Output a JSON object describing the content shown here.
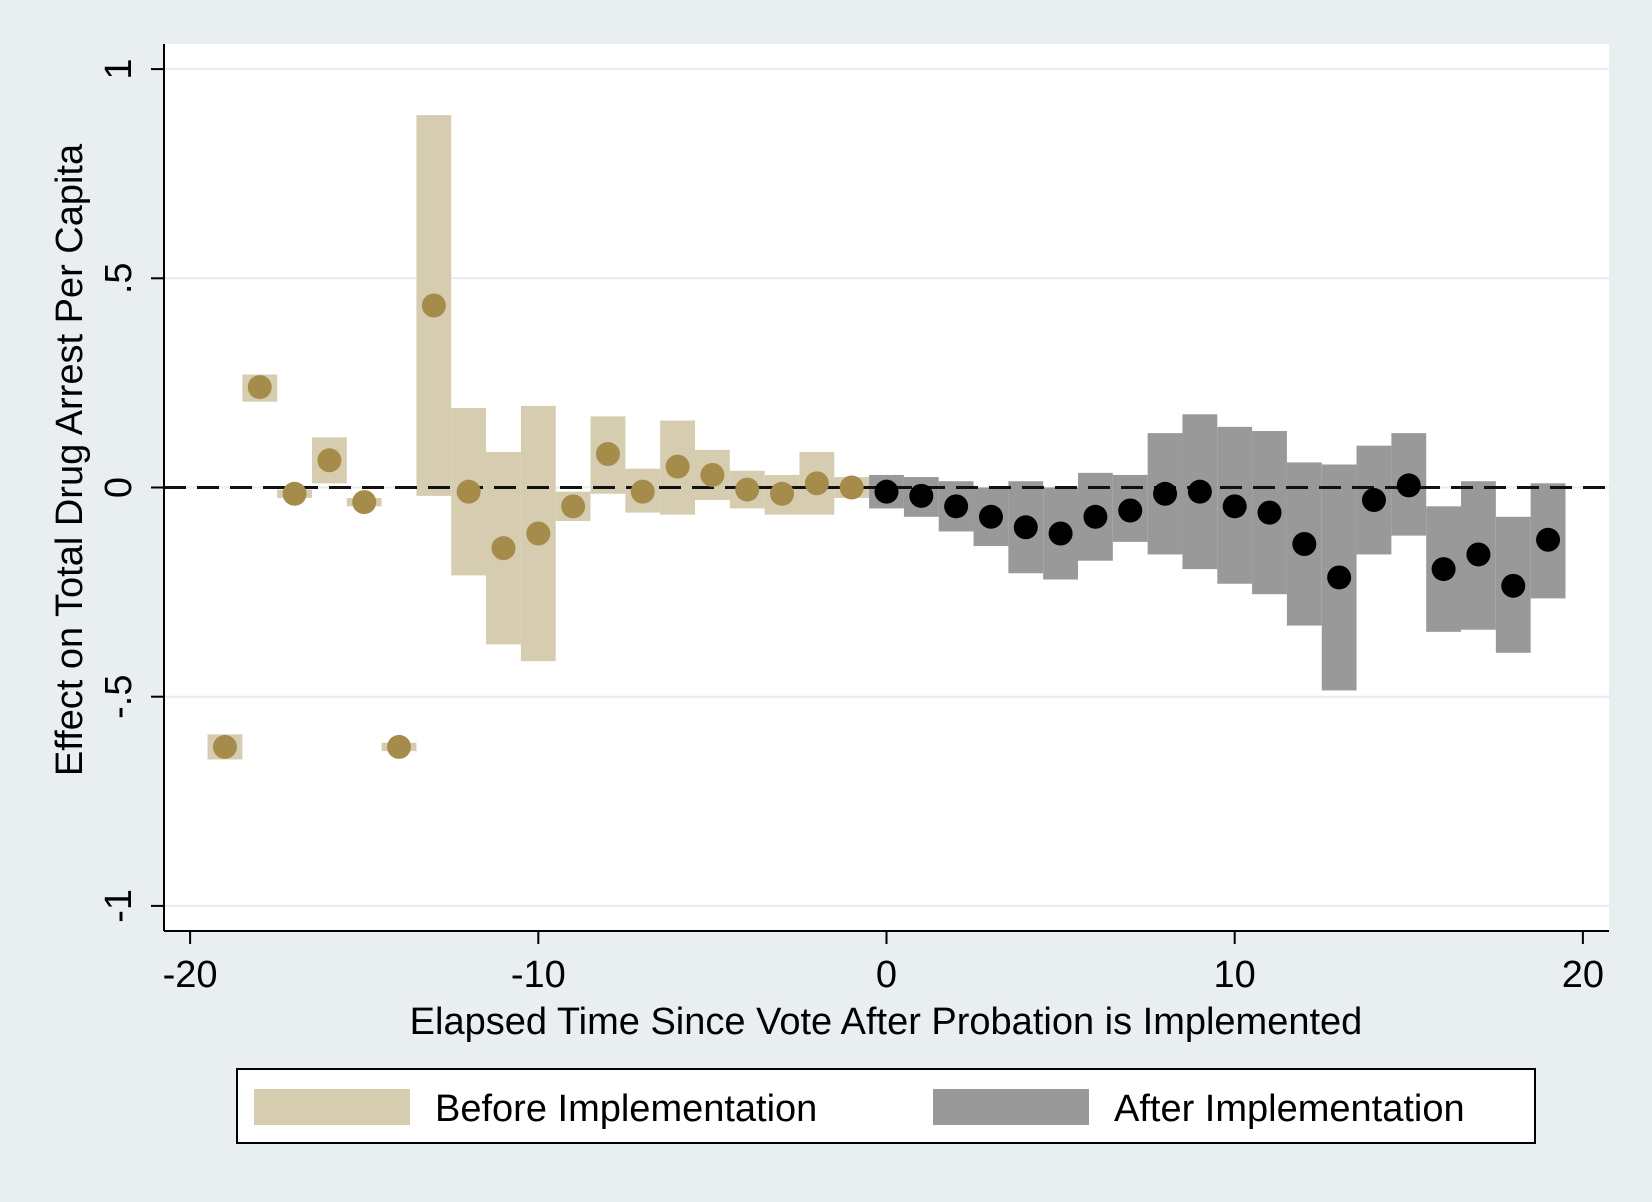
{
  "chart_data": {
    "type": "scatter",
    "xlabel": "Elapsed Time Since Vote After Probation is Implemented",
    "ylabel": "Effect on Total Drug Arrest Per Capita",
    "xlim": [
      -20.75,
      20.75
    ],
    "ylim": [
      -1.06,
      1.06
    ],
    "x_ticks": [
      -20,
      -10,
      0,
      10,
      20
    ],
    "x_tick_labels": [
      "-20",
      "-10",
      "0",
      "10",
      "20"
    ],
    "y_ticks": [
      -1,
      -0.5,
      0,
      0.5,
      1
    ],
    "y_tick_labels": [
      "-1",
      "-.5",
      "0",
      ".5",
      "1"
    ],
    "grid": true,
    "reference_line": {
      "y": 0,
      "style": "dashed"
    },
    "legend_position": "bottom",
    "colors": {
      "before_band": "#d6ccb0",
      "before_point": "#a58c4b",
      "after_band": "#999999",
      "after_point": "#000000",
      "background": "#e9eef1",
      "plot_background": "#ffffff",
      "grid": "#e6ecef"
    },
    "series": [
      {
        "name": "Before Implementation",
        "points": [
          {
            "x": -19,
            "y": -0.62,
            "lo": -0.65,
            "hi": -0.59
          },
          {
            "x": -18,
            "y": 0.24,
            "lo": 0.205,
            "hi": 0.27
          },
          {
            "x": -17,
            "y": -0.015,
            "lo": -0.025,
            "hi": -0.005
          },
          {
            "x": -16,
            "y": 0.065,
            "lo": 0.01,
            "hi": 0.12
          },
          {
            "x": -15,
            "y": -0.035,
            "lo": -0.045,
            "hi": -0.025
          },
          {
            "x": -14,
            "y": -0.62,
            "lo": -0.63,
            "hi": -0.61
          },
          {
            "x": -13,
            "y": 0.435,
            "lo": -0.02,
            "hi": 0.89
          },
          {
            "x": -12,
            "y": -0.01,
            "lo": -0.21,
            "hi": 0.19
          },
          {
            "x": -11,
            "y": -0.145,
            "lo": -0.375,
            "hi": 0.085
          },
          {
            "x": -10,
            "y": -0.11,
            "lo": -0.415,
            "hi": 0.195
          },
          {
            "x": -9,
            "y": -0.045,
            "lo": -0.08,
            "hi": -0.01
          },
          {
            "x": -8,
            "y": 0.08,
            "lo": -0.015,
            "hi": 0.17
          },
          {
            "x": -7,
            "y": -0.01,
            "lo": -0.06,
            "hi": 0.045
          },
          {
            "x": -6,
            "y": 0.05,
            "lo": -0.065,
            "hi": 0.16
          },
          {
            "x": -5,
            "y": 0.03,
            "lo": -0.03,
            "hi": 0.09
          },
          {
            "x": -4,
            "y": -0.005,
            "lo": -0.05,
            "hi": 0.04
          },
          {
            "x": -3,
            "y": -0.015,
            "lo": -0.065,
            "hi": 0.03
          },
          {
            "x": -2,
            "y": 0.01,
            "lo": -0.065,
            "hi": 0.085
          },
          {
            "x": -1,
            "y": 0.0,
            "lo": -0.025,
            "hi": 0.025
          }
        ]
      },
      {
        "name": "After Implementation",
        "points": [
          {
            "x": 0,
            "y": -0.01,
            "lo": -0.05,
            "hi": 0.03
          },
          {
            "x": 1,
            "y": -0.02,
            "lo": -0.07,
            "hi": 0.025
          },
          {
            "x": 2,
            "y": -0.045,
            "lo": -0.105,
            "hi": 0.015
          },
          {
            "x": 3,
            "y": -0.07,
            "lo": -0.14,
            "hi": 0.0
          },
          {
            "x": 4,
            "y": -0.095,
            "lo": -0.205,
            "hi": 0.015
          },
          {
            "x": 5,
            "y": -0.11,
            "lo": -0.22,
            "hi": 0.0
          },
          {
            "x": 6,
            "y": -0.07,
            "lo": -0.175,
            "hi": 0.035
          },
          {
            "x": 7,
            "y": -0.055,
            "lo": -0.13,
            "hi": 0.03
          },
          {
            "x": 8,
            "y": -0.015,
            "lo": -0.16,
            "hi": 0.13
          },
          {
            "x": 9,
            "y": -0.01,
            "lo": -0.195,
            "hi": 0.175
          },
          {
            "x": 10,
            "y": -0.045,
            "lo": -0.23,
            "hi": 0.145
          },
          {
            "x": 11,
            "y": -0.06,
            "lo": -0.255,
            "hi": 0.135
          },
          {
            "x": 12,
            "y": -0.135,
            "lo": -0.33,
            "hi": 0.06
          },
          {
            "x": 13,
            "y": -0.215,
            "lo": -0.485,
            "hi": 0.055
          },
          {
            "x": 14,
            "y": -0.03,
            "lo": -0.16,
            "hi": 0.1
          },
          {
            "x": 15,
            "y": 0.005,
            "lo": -0.115,
            "hi": 0.13
          },
          {
            "x": 16,
            "y": -0.195,
            "lo": -0.345,
            "hi": -0.045
          },
          {
            "x": 17,
            "y": -0.16,
            "lo": -0.34,
            "hi": 0.015
          },
          {
            "x": 18,
            "y": -0.235,
            "lo": -0.395,
            "hi": -0.07
          },
          {
            "x": 19,
            "y": -0.125,
            "lo": -0.265,
            "hi": 0.01
          }
        ]
      }
    ]
  }
}
